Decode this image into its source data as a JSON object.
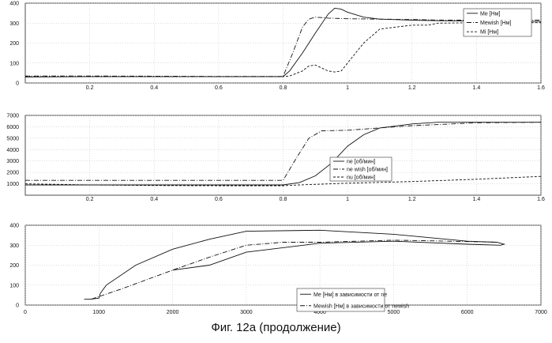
{
  "caption": "Фиг. 12а (продолжение)",
  "chart_data": [
    {
      "type": "line",
      "panel": "torque_vs_time",
      "xlim": [
        0,
        1.6
      ],
      "ylim": [
        0,
        400
      ],
      "xticks": [
        "0.2",
        "0.4",
        "0.6",
        "0.8",
        "1",
        "1.2",
        "1.4",
        "1.6"
      ],
      "yticks": [
        "0",
        "100",
        "200",
        "300",
        "400"
      ],
      "grid": true,
      "legend": "top-right",
      "series": [
        {
          "name": "Me [Нм]",
          "style": "solid",
          "x": [
            0,
            0.2,
            0.4,
            0.6,
            0.8,
            0.82,
            0.86,
            0.9,
            0.94,
            0.96,
            0.98,
            1.0,
            1.05,
            1.1,
            1.2,
            1.28,
            1.6
          ],
          "y": [
            30,
            32,
            32,
            32,
            32,
            60,
            150,
            250,
            345,
            375,
            370,
            355,
            330,
            320,
            315,
            312,
            308
          ]
        },
        {
          "name": "Mewish [Нм]",
          "style": "dashdot",
          "x": [
            0,
            0.2,
            0.4,
            0.6,
            0.8,
            0.83,
            0.86,
            0.88,
            0.9,
            0.94,
            1.0,
            1.2,
            1.3,
            1.6
          ],
          "y": [
            35,
            35,
            34,
            33,
            33,
            150,
            280,
            320,
            330,
            325,
            322,
            318,
            315,
            315
          ]
        },
        {
          "name": "Mi [Нм]",
          "style": "dashed",
          "x": [
            0,
            0.2,
            0.4,
            0.6,
            0.8,
            0.82,
            0.86,
            0.88,
            0.9,
            0.92,
            0.94,
            0.96,
            0.98,
            1.0,
            1.05,
            1.1,
            1.2,
            1.25,
            1.28,
            1.4,
            1.6
          ],
          "y": [
            32,
            32,
            32,
            32,
            32,
            35,
            60,
            85,
            90,
            75,
            60,
            55,
            60,
            100,
            200,
            270,
            290,
            290,
            300,
            302,
            302
          ]
        }
      ]
    },
    {
      "type": "line",
      "panel": "speed_vs_time",
      "xlim": [
        0,
        1.6
      ],
      "ylim": [
        0,
        7000
      ],
      "xticks": [
        "0.2",
        "0.4",
        "0.6",
        "0.8",
        "1",
        "1.2",
        "1.4",
        "1.6"
      ],
      "yticks": [
        "1000",
        "2000",
        "3000",
        "4000",
        "5000",
        "6000",
        "7000"
      ],
      "grid": true,
      "legend": "center-right",
      "series": [
        {
          "name": "ne [об/мин]",
          "style": "solid",
          "x": [
            0,
            0.2,
            0.4,
            0.6,
            0.8,
            0.85,
            0.9,
            0.95,
            1.0,
            1.05,
            1.1,
            1.2,
            1.28,
            1.4,
            1.6
          ],
          "y": [
            900,
            900,
            900,
            900,
            900,
            1100,
            1700,
            2800,
            4300,
            5300,
            5900,
            6250,
            6400,
            6400,
            6400
          ]
        },
        {
          "name": "ne wish [об/мин]",
          "style": "dashdot",
          "x": [
            0,
            0.2,
            0.4,
            0.6,
            0.8,
            0.84,
            0.88,
            0.92,
            1.0,
            1.2,
            1.4,
            1.6
          ],
          "y": [
            1300,
            1300,
            1300,
            1300,
            1300,
            3200,
            5000,
            5650,
            5700,
            6100,
            6350,
            6400
          ]
        },
        {
          "name": "nu [об/мин]",
          "style": "dashed",
          "x": [
            0,
            0.2,
            0.4,
            0.6,
            0.8,
            0.85,
            1.0,
            1.2,
            1.4,
            1.6
          ],
          "y": [
            1000,
            900,
            850,
            830,
            830,
            900,
            1050,
            1200,
            1400,
            1650
          ]
        }
      ]
    },
    {
      "type": "line",
      "panel": "torque_vs_speed",
      "xlim": [
        0,
        7000
      ],
      "ylim": [
        0,
        400
      ],
      "xticks": [
        "0",
        "1000",
        "2000",
        "3000",
        "4000",
        "5000",
        "6000",
        "7000"
      ],
      "yticks": [
        "0",
        "100",
        "200",
        "300",
        "400"
      ],
      "grid": true,
      "legend": "bottom-right",
      "series": [
        {
          "name": "Me [Нм] в зависимости от ne",
          "style": "solid",
          "x": [
            800,
            900,
            1000,
            1020,
            1100,
            1500,
            2000,
            2500,
            3000,
            4000,
            5000,
            6000,
            6400,
            6500,
            6450,
            6000,
            5000,
            4000,
            3000,
            2500,
            2000
          ],
          "y": [
            30,
            30,
            35,
            60,
            100,
            200,
            280,
            330,
            370,
            375,
            355,
            320,
            315,
            305,
            300,
            305,
            320,
            310,
            265,
            200,
            175
          ]
        },
        {
          "name": "Mewish [Нм] в зависимости от newish",
          "style": "dashdot",
          "x": [
            900,
            1300,
            2000,
            2500,
            3000,
            3500,
            4000,
            4500,
            5000,
            5500,
            6000,
            6400
          ],
          "y": [
            30,
            80,
            175,
            240,
            300,
            315,
            315,
            320,
            325,
            322,
            318,
            315
          ]
        }
      ]
    }
  ]
}
